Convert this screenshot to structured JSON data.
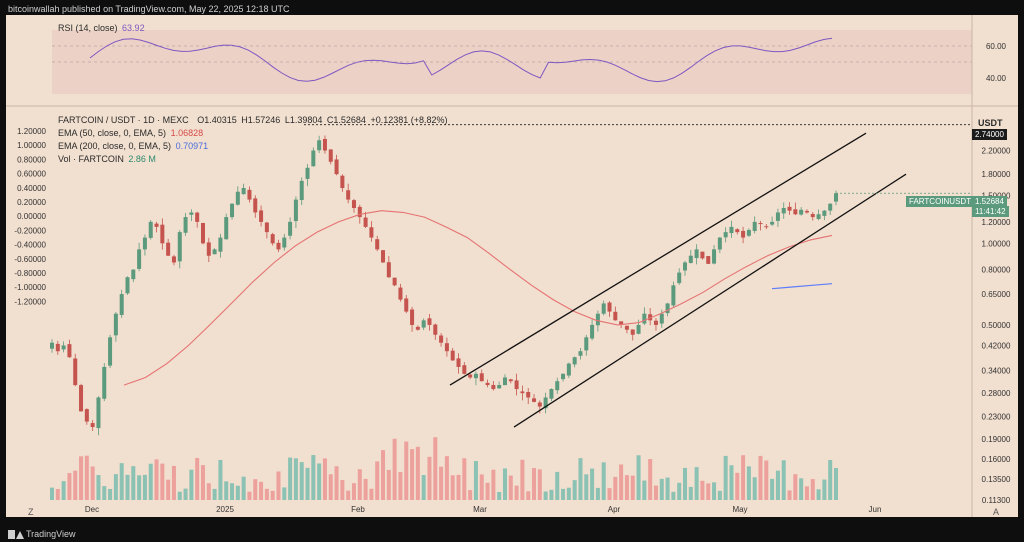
{
  "header": {
    "publisher": "bitcoinwallah published on TradingView.com, May 22, 2025 12:18 UTC"
  },
  "rsi": {
    "label": "RSI (14, close)",
    "value": "63.92",
    "levels": [
      "60.00",
      "40.00"
    ],
    "line_color": "#7e57c2"
  },
  "legend": {
    "symbol": "FARTCOIN / USDT · 1D · MEXC",
    "open": "O1.40315",
    "high": "H1.57246",
    "low": "L1.39804",
    "close": "C1.52684",
    "change": "+0.12381 (+8.82%)",
    "ema50_label": "EMA (50, close, 0, EMA, 5)",
    "ema50_value": "1.06828",
    "ema200_label": "EMA (200, close, 0, EMA, 5)",
    "ema200_value": "0.70971",
    "vol_label": "Vol · FARTCOIN",
    "vol_value": "2.86 M"
  },
  "axis": {
    "currency": "USDT",
    "right_labels": [
      "2.74000",
      "2.20000",
      "1.80000",
      "1.50000",
      "1.20000",
      "1.00000",
      "0.80000",
      "0.65000",
      "0.50000",
      "0.42000",
      "0.34000",
      "0.28000",
      "0.23000",
      "0.19000",
      "0.16000",
      "0.13500",
      "0.11300"
    ],
    "left_labels": [
      "1.20000",
      "1.00000",
      "0.80000",
      "0.60000",
      "0.40000",
      "0.20000",
      "0.00000",
      "-0.20000",
      "-0.40000",
      "-0.60000",
      "-0.80000",
      "-1.00000",
      "-1.20000"
    ],
    "x_labels": [
      "Dec",
      "2025",
      "Feb",
      "Mar",
      "Apr",
      "May",
      "Jun"
    ],
    "zoom_label": "Z",
    "auto_label": "A"
  },
  "price_tag": {
    "symbol": "FARTCOINUSDT",
    "price": "1.52684",
    "countdown": "11:41:42",
    "ath": "2.74000"
  },
  "colors": {
    "up": "#5b9a7c",
    "down": "#c5534e",
    "vol_up": "#7fbfb0",
    "vol_down": "#ec9a97",
    "bg": "#f1dfcf",
    "ema50": "#e57373",
    "ema200": "#5c7cfa"
  },
  "chart_data": {
    "type": "candlestick",
    "title": "FARTCOIN / USDT · 1D · MEXC",
    "y_scale": "log",
    "ylim": [
      0.113,
      2.9
    ],
    "x_labels": [
      "Dec",
      "2025",
      "Feb",
      "Mar",
      "Apr",
      "May",
      "Jun"
    ],
    "series": [
      {
        "name": "EMA (50, close, 0, EMA, 5)",
        "last_value": 1.06828
      },
      {
        "name": "EMA (200, close, 0, EMA, 5)",
        "last_value": 0.70971
      },
      {
        "name": "Vol · FARTCOIN",
        "last_value": "2.86 M"
      }
    ],
    "close_path_approx": [
      0.43,
      0.4,
      0.42,
      0.38,
      0.3,
      0.24,
      0.22,
      0.21,
      0.27,
      0.35,
      0.45,
      0.55,
      0.65,
      0.75,
      0.8,
      0.95,
      1.05,
      1.2,
      1.15,
      1.0,
      0.9,
      0.85,
      1.1,
      1.25,
      1.3,
      1.2,
      1.0,
      0.9,
      0.95,
      1.05,
      1.25,
      1.4,
      1.55,
      1.6,
      1.45,
      1.3,
      1.2,
      1.1,
      1.0,
      0.95,
      1.05,
      1.2,
      1.45,
      1.7,
      1.9,
      2.2,
      2.4,
      2.2,
      2.0,
      1.8,
      1.6,
      1.45,
      1.35,
      1.25,
      1.15,
      1.05,
      0.95,
      0.85,
      0.75,
      0.7,
      0.62,
      0.56,
      0.5,
      0.48,
      0.52,
      0.5,
      0.46,
      0.43,
      0.4,
      0.37,
      0.35,
      0.33,
      0.32,
      0.33,
      0.31,
      0.3,
      0.29,
      0.3,
      0.32,
      0.31,
      0.29,
      0.28,
      0.27,
      0.26,
      0.25,
      0.27,
      0.29,
      0.31,
      0.33,
      0.36,
      0.38,
      0.4,
      0.45,
      0.5,
      0.55,
      0.6,
      0.56,
      0.52,
      0.5,
      0.48,
      0.46,
      0.5,
      0.55,
      0.52,
      0.5,
      0.55,
      0.6,
      0.7,
      0.78,
      0.85,
      0.9,
      0.95,
      0.88,
      0.84,
      0.95,
      1.05,
      1.1,
      1.15,
      1.1,
      1.05,
      1.12,
      1.2,
      1.18,
      1.15,
      1.2,
      1.3,
      1.35,
      1.32,
      1.28,
      1.33,
      1.3,
      1.25,
      1.28,
      1.32,
      1.4,
      1.53
    ],
    "ema50_path_approx": [
      0.3,
      0.32,
      0.36,
      0.42,
      0.5,
      0.6,
      0.72,
      0.85,
      0.98,
      1.1,
      1.2,
      1.28,
      1.32,
      1.3,
      1.25,
      1.15,
      1.05,
      0.92,
      0.8,
      0.7,
      0.62,
      0.56,
      0.52,
      0.5,
      0.51,
      0.55,
      0.6,
      0.66,
      0.74,
      0.82,
      0.9,
      0.97,
      1.03,
      1.07
    ],
    "ema200_path_approx": [
      0.68,
      0.69,
      0.7,
      0.71
    ],
    "channel": {
      "upper": {
        "from": [
          "Mar",
          0.3
        ],
        "to": [
          "Jun",
          2.55
        ]
      },
      "lower": {
        "from": [
          "Mar",
          0.21
        ],
        "to": [
          "Jun",
          1.8
        ]
      }
    }
  }
}
